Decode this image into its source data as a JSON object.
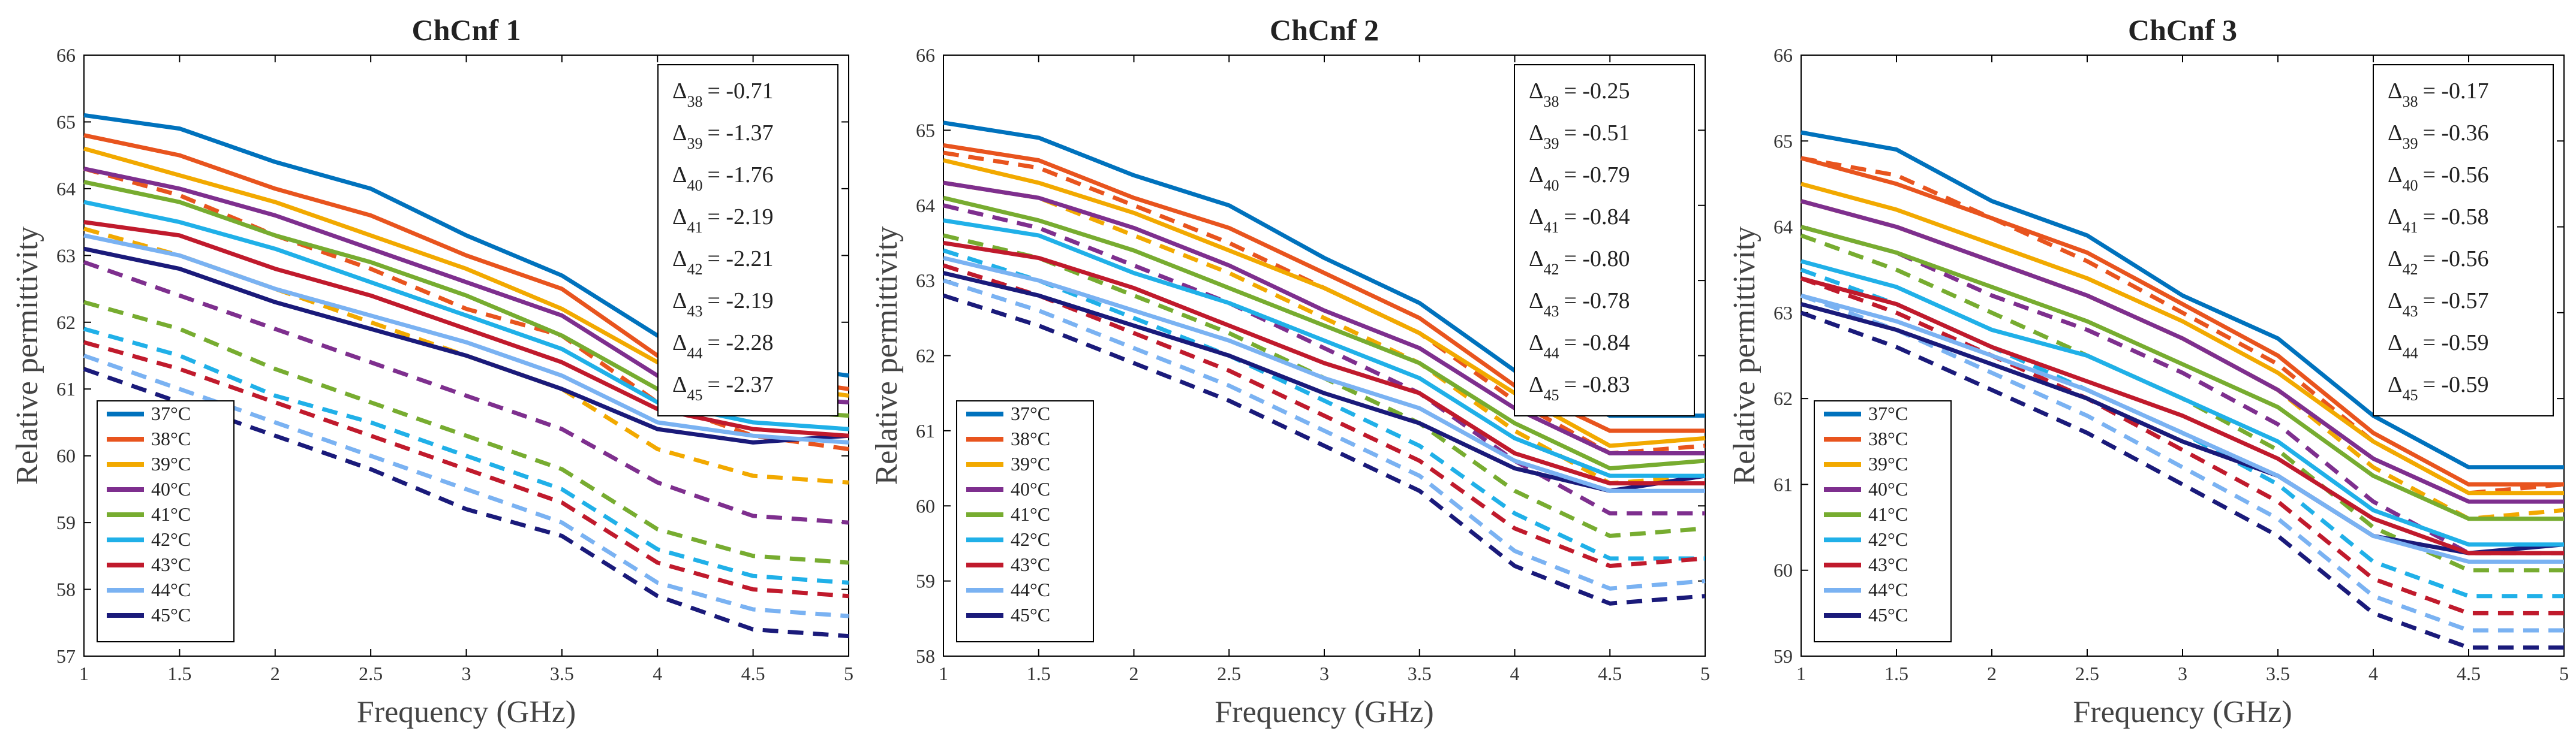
{
  "chart_data": [
    {
      "type": "line",
      "title": "ChCnf 1",
      "xlabel": "Frequency (GHz)",
      "ylabel": "Relative permittivity",
      "xlim": [
        1,
        5
      ],
      "ylim": [
        57,
        66
      ],
      "x": [
        1,
        1.5,
        2,
        2.5,
        3,
        3.5,
        4,
        4.5,
        5
      ],
      "xticks": [
        "1",
        "1.5",
        "2",
        "2.5",
        "3",
        "3.5",
        "4",
        "4.5",
        "5"
      ],
      "yticks": [
        "57",
        "58",
        "59",
        "60",
        "61",
        "62",
        "63",
        "64",
        "65",
        "66"
      ],
      "series": [
        {
          "name": "37°C",
          "color": "#0072BD",
          "values": [
            65.1,
            64.9,
            64.4,
            64.0,
            63.3,
            62.7,
            61.8,
            61.4,
            61.2
          ]
        },
        {
          "name": "38°C",
          "color": "#E8541E",
          "values": [
            64.8,
            64.5,
            64.0,
            63.6,
            63.0,
            62.5,
            61.5,
            61.2,
            61.0
          ]
        },
        {
          "name": "39°C",
          "color": "#F2A900",
          "values": [
            64.6,
            64.2,
            63.8,
            63.3,
            62.8,
            62.2,
            61.4,
            61.1,
            60.9
          ]
        },
        {
          "name": "40°C",
          "color": "#7E2F8E",
          "values": [
            64.3,
            64.0,
            63.6,
            63.1,
            62.6,
            62.1,
            61.2,
            60.9,
            60.8
          ]
        },
        {
          "name": "41°C",
          "color": "#77AC30",
          "values": [
            64.1,
            63.8,
            63.3,
            62.9,
            62.4,
            61.8,
            61.0,
            60.7,
            60.6
          ]
        },
        {
          "name": "42°C",
          "color": "#20B0E8",
          "values": [
            63.8,
            63.5,
            63.1,
            62.6,
            62.1,
            61.6,
            60.8,
            60.5,
            60.4
          ]
        },
        {
          "name": "43°C",
          "color": "#C01A2C",
          "values": [
            63.5,
            63.3,
            62.8,
            62.4,
            61.9,
            61.4,
            60.7,
            60.4,
            60.3
          ]
        },
        {
          "name": "44°C",
          "color": "#7AB2F2",
          "values": [
            63.3,
            63.0,
            62.5,
            62.1,
            61.7,
            61.2,
            60.5,
            60.3,
            60.2
          ]
        },
        {
          "name": "45°C",
          "color": "#1A1A7A",
          "values": [
            63.1,
            62.8,
            62.3,
            61.9,
            61.5,
            61.0,
            60.4,
            60.2,
            60.3
          ]
        }
      ],
      "dashed_series": [
        {
          "name": "38°C",
          "values": [
            64.3,
            63.9,
            63.3,
            62.8,
            62.2,
            61.8,
            60.8,
            60.3,
            60.1
          ]
        },
        {
          "name": "39°C",
          "values": [
            63.4,
            63.0,
            62.5,
            62.0,
            61.5,
            61.0,
            60.1,
            59.7,
            59.6
          ]
        },
        {
          "name": "40°C",
          "values": [
            62.9,
            62.4,
            61.9,
            61.4,
            60.9,
            60.4,
            59.6,
            59.1,
            59.0
          ]
        },
        {
          "name": "41°C",
          "values": [
            62.3,
            61.9,
            61.3,
            60.8,
            60.3,
            59.8,
            58.9,
            58.5,
            58.4
          ]
        },
        {
          "name": "42°C",
          "values": [
            61.9,
            61.5,
            60.9,
            60.5,
            60.0,
            59.5,
            58.6,
            58.2,
            58.1
          ]
        },
        {
          "name": "43°C",
          "values": [
            61.7,
            61.3,
            60.8,
            60.3,
            59.8,
            59.3,
            58.4,
            58.0,
            57.9
          ]
        },
        {
          "name": "44°C",
          "values": [
            61.5,
            61.0,
            60.5,
            60.0,
            59.5,
            59.0,
            58.1,
            57.7,
            57.6
          ]
        },
        {
          "name": "45°C",
          "values": [
            61.3,
            60.8,
            60.3,
            59.8,
            59.2,
            58.8,
            57.9,
            57.4,
            57.3
          ]
        }
      ],
      "annotation": [
        {
          "sub": "38",
          "value": "= -0.71"
        },
        {
          "sub": "39",
          "value": "= -1.37"
        },
        {
          "sub": "40",
          "value": "= -1.76"
        },
        {
          "sub": "41",
          "value": "= -2.19"
        },
        {
          "sub": "42",
          "value": "= -2.21"
        },
        {
          "sub": "43",
          "value": "= -2.19"
        },
        {
          "sub": "44",
          "value": "= -2.28"
        },
        {
          "sub": "45",
          "value": "= -2.37"
        }
      ]
    },
    {
      "type": "line",
      "title": "ChCnf 2",
      "xlabel": "Frequency (GHz)",
      "ylabel": "Relative permittivity",
      "xlim": [
        1,
        5
      ],
      "ylim": [
        58,
        66
      ],
      "x": [
        1,
        1.5,
        2,
        2.5,
        3,
        3.5,
        4,
        4.5,
        5
      ],
      "xticks": [
        "1",
        "1.5",
        "2",
        "2.5",
        "3",
        "3.5",
        "4",
        "4.5",
        "5"
      ],
      "yticks": [
        "58",
        "59",
        "60",
        "61",
        "62",
        "63",
        "64",
        "65",
        "66"
      ],
      "series": [
        {
          "name": "37°C",
          "color": "#0072BD",
          "values": [
            65.1,
            64.9,
            64.4,
            64.0,
            63.3,
            62.7,
            61.8,
            61.2,
            61.2
          ]
        },
        {
          "name": "38°C",
          "color": "#E8541E",
          "values": [
            64.8,
            64.6,
            64.1,
            63.7,
            63.1,
            62.5,
            61.6,
            61.0,
            61.0
          ]
        },
        {
          "name": "39°C",
          "color": "#F2A900",
          "values": [
            64.6,
            64.3,
            63.9,
            63.4,
            62.9,
            62.3,
            61.5,
            60.8,
            60.9
          ]
        },
        {
          "name": "40°C",
          "color": "#7E2F8E",
          "values": [
            64.3,
            64.1,
            63.7,
            63.2,
            62.6,
            62.1,
            61.3,
            60.7,
            60.7
          ]
        },
        {
          "name": "41°C",
          "color": "#77AC30",
          "values": [
            64.1,
            63.8,
            63.4,
            62.9,
            62.4,
            61.9,
            61.1,
            60.5,
            60.6
          ]
        },
        {
          "name": "42°C",
          "color": "#20B0E8",
          "values": [
            63.8,
            63.6,
            63.1,
            62.7,
            62.2,
            61.7,
            60.9,
            60.4,
            60.4
          ]
        },
        {
          "name": "43°C",
          "color": "#C01A2C",
          "values": [
            63.5,
            63.3,
            62.9,
            62.4,
            61.9,
            61.5,
            60.7,
            60.3,
            60.3
          ]
        },
        {
          "name": "44°C",
          "color": "#7AB2F2",
          "values": [
            63.3,
            63.0,
            62.6,
            62.2,
            61.7,
            61.3,
            60.6,
            60.2,
            60.2
          ]
        },
        {
          "name": "45°C",
          "color": "#1A1A7A",
          "values": [
            63.1,
            62.8,
            62.4,
            62.0,
            61.5,
            61.1,
            60.5,
            60.2,
            60.4
          ]
        }
      ],
      "dashed_series": [
        {
          "name": "38°C",
          "values": [
            64.7,
            64.5,
            64.0,
            63.5,
            62.9,
            62.3,
            61.4,
            60.7,
            60.8
          ]
        },
        {
          "name": "39°C",
          "values": [
            64.3,
            64.1,
            63.6,
            63.1,
            62.5,
            61.9,
            61.0,
            60.3,
            60.4
          ]
        },
        {
          "name": "40°C",
          "values": [
            64.0,
            63.7,
            63.2,
            62.7,
            62.1,
            61.5,
            60.6,
            59.9,
            59.9
          ]
        },
        {
          "name": "41°C",
          "values": [
            63.6,
            63.3,
            62.8,
            62.3,
            61.7,
            61.1,
            60.2,
            59.6,
            59.7
          ]
        },
        {
          "name": "42°C",
          "values": [
            63.4,
            63.0,
            62.5,
            62.0,
            61.4,
            60.8,
            59.9,
            59.3,
            59.3
          ]
        },
        {
          "name": "43°C",
          "values": [
            63.2,
            62.8,
            62.3,
            61.8,
            61.2,
            60.6,
            59.7,
            59.2,
            59.3
          ]
        },
        {
          "name": "44°C",
          "values": [
            63.0,
            62.6,
            62.1,
            61.6,
            61.0,
            60.4,
            59.4,
            58.9,
            59.0
          ]
        },
        {
          "name": "45°C",
          "values": [
            62.8,
            62.4,
            61.9,
            61.4,
            60.8,
            60.2,
            59.2,
            58.7,
            58.8
          ]
        }
      ],
      "annotation": [
        {
          "sub": "38",
          "value": "= -0.25"
        },
        {
          "sub": "39",
          "value": "= -0.51"
        },
        {
          "sub": "40",
          "value": "= -0.79"
        },
        {
          "sub": "41",
          "value": "= -0.84"
        },
        {
          "sub": "42",
          "value": "= -0.80"
        },
        {
          "sub": "43",
          "value": "= -0.78"
        },
        {
          "sub": "44",
          "value": "= -0.84"
        },
        {
          "sub": "45",
          "value": "= -0.83"
        }
      ]
    },
    {
      "type": "line",
      "title": "ChCnf 3",
      "xlabel": "Frequency (GHz)",
      "ylabel": "Relative permittivity",
      "xlim": [
        1,
        5
      ],
      "ylim": [
        59,
        66
      ],
      "x": [
        1,
        1.5,
        2,
        2.5,
        3,
        3.5,
        4,
        4.5,
        5
      ],
      "xticks": [
        "1",
        "1.5",
        "2",
        "2.5",
        "3",
        "3.5",
        "4",
        "4.5",
        "5"
      ],
      "yticks": [
        "59",
        "60",
        "61",
        "62",
        "63",
        "64",
        "65",
        "66"
      ],
      "series": [
        {
          "name": "37°C",
          "color": "#0072BD",
          "values": [
            65.1,
            64.9,
            64.3,
            63.9,
            63.2,
            62.7,
            61.8,
            61.2,
            61.2
          ]
        },
        {
          "name": "38°C",
          "color": "#E8541E",
          "values": [
            64.8,
            64.5,
            64.1,
            63.7,
            63.1,
            62.5,
            61.6,
            61.0,
            61.0
          ]
        },
        {
          "name": "39°C",
          "color": "#F2A900",
          "values": [
            64.5,
            64.2,
            63.8,
            63.4,
            62.9,
            62.3,
            61.5,
            60.9,
            60.9
          ]
        },
        {
          "name": "40°C",
          "color": "#7E2F8E",
          "values": [
            64.3,
            64.0,
            63.6,
            63.2,
            62.7,
            62.1,
            61.3,
            60.8,
            60.8
          ]
        },
        {
          "name": "41°C",
          "color": "#77AC30",
          "values": [
            64.0,
            63.7,
            63.3,
            62.9,
            62.4,
            61.9,
            61.1,
            60.6,
            60.6
          ]
        },
        {
          "name": "42°C",
          "color": "#20B0E8",
          "values": [
            63.6,
            63.3,
            62.8,
            62.5,
            62.0,
            61.5,
            60.7,
            60.3,
            60.3
          ]
        },
        {
          "name": "43°C",
          "color": "#C01A2C",
          "values": [
            63.4,
            63.1,
            62.6,
            62.2,
            61.8,
            61.3,
            60.6,
            60.2,
            60.2
          ]
        },
        {
          "name": "44°C",
          "color": "#7AB2F2",
          "values": [
            63.2,
            62.9,
            62.5,
            62.1,
            61.6,
            61.1,
            60.4,
            60.1,
            60.1
          ]
        },
        {
          "name": "45°C",
          "color": "#1A1A7A",
          "values": [
            63.1,
            62.8,
            62.4,
            62.0,
            61.5,
            61.1,
            60.4,
            60.2,
            60.3
          ]
        }
      ],
      "dashed_series": [
        {
          "name": "38°C",
          "values": [
            64.8,
            64.6,
            64.1,
            63.6,
            63.0,
            62.4,
            61.5,
            60.9,
            61.0
          ]
        },
        {
          "name": "39°C",
          "values": [
            64.3,
            64.0,
            63.6,
            63.2,
            62.7,
            62.1,
            61.2,
            60.6,
            60.7
          ]
        },
        {
          "name": "40°C",
          "values": [
            64.0,
            63.7,
            63.2,
            62.8,
            62.3,
            61.7,
            60.8,
            60.2,
            60.2
          ]
        },
        {
          "name": "41°C",
          "values": [
            63.9,
            63.5,
            63.0,
            62.5,
            62.0,
            61.4,
            60.5,
            60.0,
            60.0
          ]
        },
        {
          "name": "42°C",
          "values": [
            63.5,
            63.1,
            62.6,
            62.1,
            61.6,
            61.0,
            60.1,
            59.7,
            59.7
          ]
        },
        {
          "name": "43°C",
          "values": [
            63.4,
            63.0,
            62.5,
            62.0,
            61.4,
            60.8,
            59.9,
            59.5,
            59.5
          ]
        },
        {
          "name": "44°C",
          "values": [
            63.2,
            62.8,
            62.3,
            61.8,
            61.2,
            60.6,
            59.7,
            59.3,
            59.3
          ]
        },
        {
          "name": "45°C",
          "values": [
            63.0,
            62.6,
            62.1,
            61.6,
            61.0,
            60.4,
            59.5,
            59.1,
            59.1
          ]
        }
      ],
      "annotation": [
        {
          "sub": "38",
          "value": "= -0.17"
        },
        {
          "sub": "39",
          "value": "= -0.36"
        },
        {
          "sub": "40",
          "value": "= -0.56"
        },
        {
          "sub": "41",
          "value": "= -0.58"
        },
        {
          "sub": "42",
          "value": "= -0.56"
        },
        {
          "sub": "43",
          "value": "= -0.57"
        },
        {
          "sub": "44",
          "value": "= -0.59"
        },
        {
          "sub": "45",
          "value": "= -0.59"
        }
      ]
    }
  ]
}
